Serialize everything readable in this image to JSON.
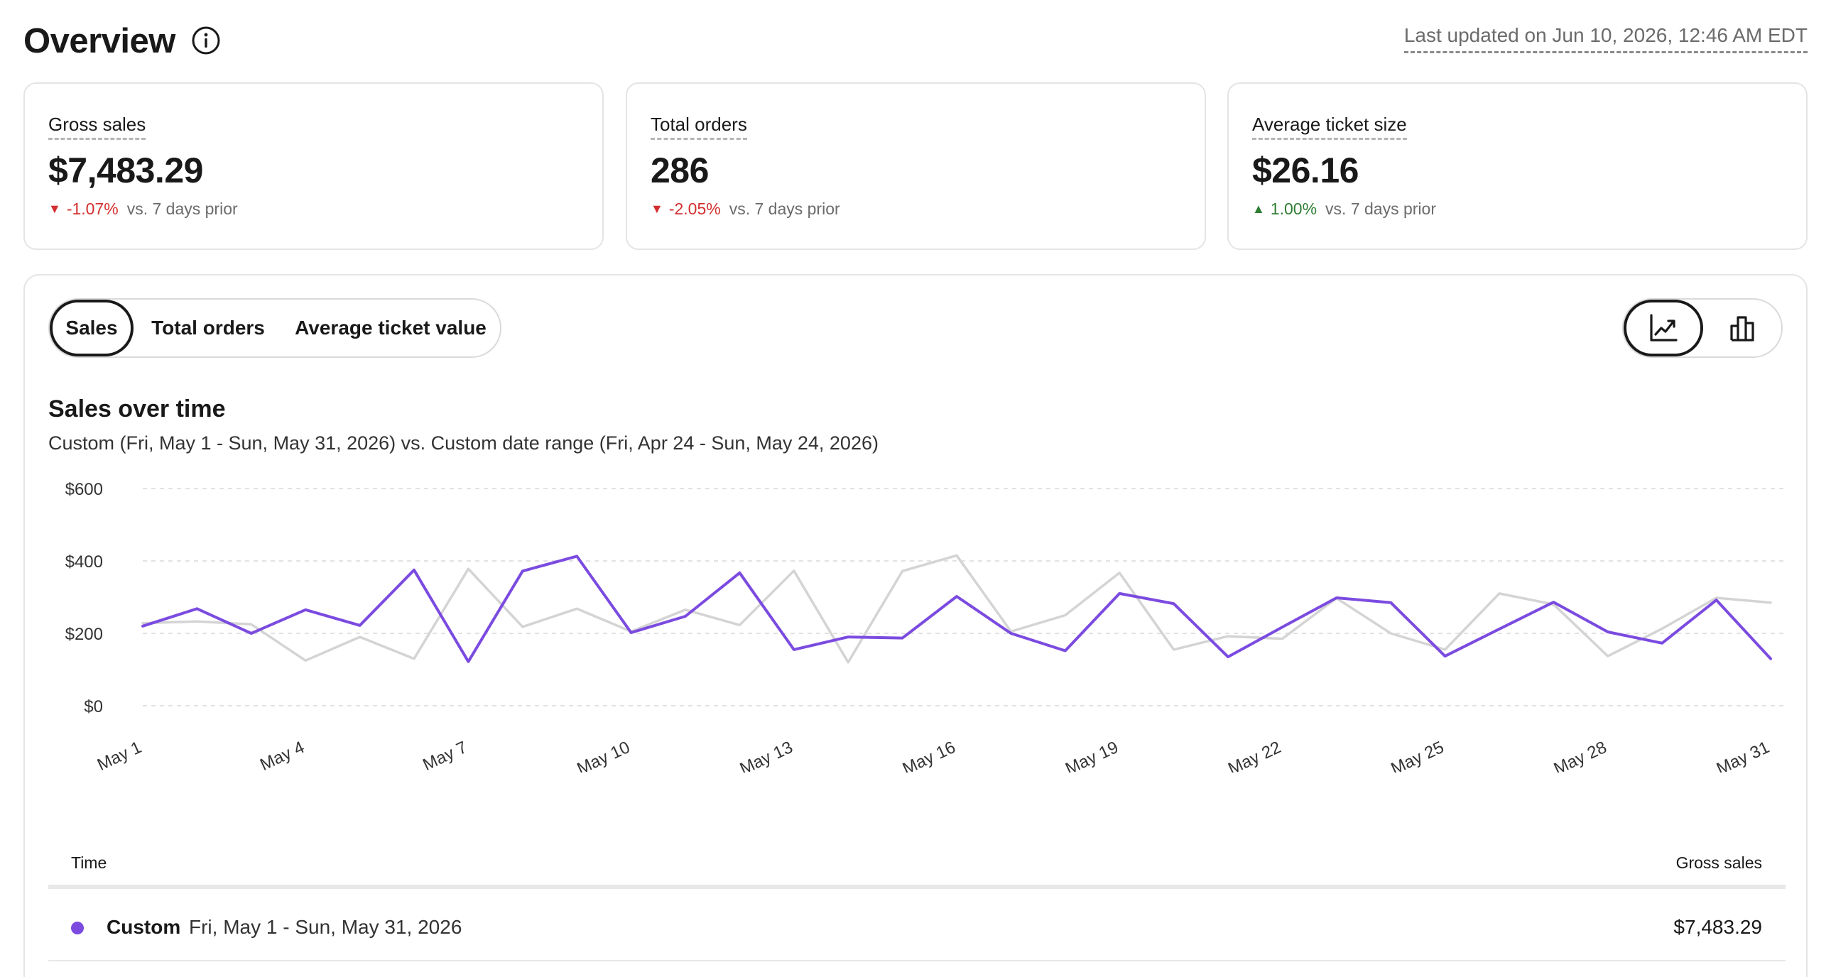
{
  "header": {
    "title": "Overview",
    "info_icon": "info-circle-icon",
    "last_updated": "Last updated on Jun 10, 2026, 12:46 AM EDT"
  },
  "kpis": [
    {
      "label": "Gross sales",
      "value": "$7,483.29",
      "delta": "-1.07%",
      "direction": "down",
      "comparison": "vs. 7 days prior"
    },
    {
      "label": "Total orders",
      "value": "286",
      "delta": "-2.05%",
      "direction": "down",
      "comparison": "vs. 7 days prior"
    },
    {
      "label": "Average ticket size",
      "value": "$26.16",
      "delta": "1.00%",
      "direction": "up",
      "comparison": "vs. 7 days prior"
    }
  ],
  "tabs": {
    "items": [
      {
        "label": "Sales",
        "active": true
      },
      {
        "label": "Total orders",
        "active": false
      },
      {
        "label": "Average ticket value",
        "active": false
      }
    ]
  },
  "chart_type_toggle": {
    "line_icon": "line-chart-icon",
    "bar_icon": "bar-chart-icon",
    "active": "line"
  },
  "chart_data": {
    "type": "line",
    "title": "Sales over time",
    "subtitle": "Custom (Fri, May 1 - Sun, May 31, 2026) vs. Custom date range (Fri, Apr 24 - Sun, May 24, 2026)",
    "x": [
      "May 1",
      "May 2",
      "May 3",
      "May 4",
      "May 5",
      "May 6",
      "May 7",
      "May 8",
      "May 9",
      "May 10",
      "May 11",
      "May 12",
      "May 13",
      "May 14",
      "May 15",
      "May 16",
      "May 17",
      "May 18",
      "May 19",
      "May 20",
      "May 21",
      "May 22",
      "May 23",
      "May 24",
      "May 25",
      "May 26",
      "May 27",
      "May 28",
      "May 29",
      "May 30",
      "May 31"
    ],
    "x_tick_labels": [
      "May 1",
      "May 4",
      "May 7",
      "May 10",
      "May 13",
      "May 16",
      "May 19",
      "May 22",
      "May 25",
      "May 28",
      "May 31"
    ],
    "y_tick_labels": [
      "$600",
      "$400",
      "$200",
      "$0"
    ],
    "ylim": [
      0,
      600
    ],
    "grid": true,
    "series": [
      {
        "color": "#7b4be0",
        "values": [
          220,
          268,
          200,
          265,
          222,
          375,
          122,
          372,
          413,
          202,
          247,
          367,
          155,
          190,
          187,
          302,
          200,
          152,
          310,
          282,
          135,
          217,
          298,
          285,
          137,
          212,
          286,
          204,
          173,
          292,
          130
        ]
      },
      {
        "color": "#d4d4d4",
        "values": [
          228,
          233,
          225,
          125,
          190,
          130,
          378,
          218,
          268,
          205,
          265,
          223,
          373,
          120,
          372,
          415,
          205,
          250,
          367,
          155,
          192,
          185,
          297,
          200,
          155,
          310,
          280,
          137,
          213,
          298,
          285
        ]
      }
    ]
  },
  "table": {
    "col_time": "Time",
    "col_value": "Gross sales",
    "rows": [
      {
        "name": "Custom",
        "range": "Fri, May 1 - Sun, May 31, 2026",
        "value": "$7,483.29",
        "color": "#7b4be0"
      }
    ]
  }
}
